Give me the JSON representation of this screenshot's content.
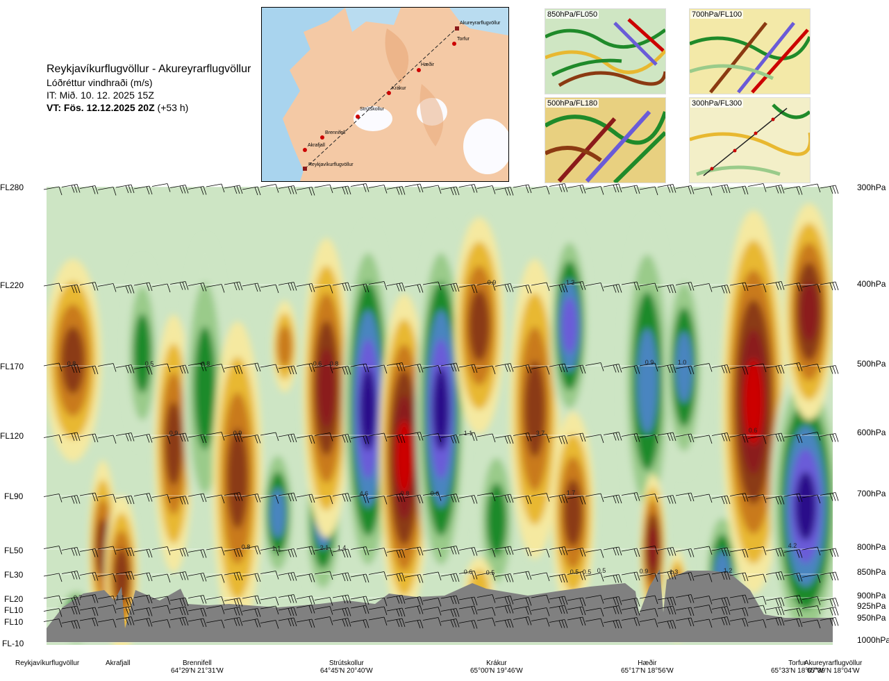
{
  "header": {
    "route": "Reykjavíkurflugvöllur - Akureyrarflugvöllur",
    "subtitle": "Lóðréttur vindhraði (m/s)",
    "issued": "IT: Mið. 10. 12. 2025 15Z",
    "valid": "VT: Fös. 12.12.2025 20Z",
    "lead": "(+53 h)"
  },
  "map": {
    "points": [
      "Akureyrarflugvöllur",
      "Torfur",
      "Hæðir",
      "Krákur",
      "Strútskollur",
      "Brennifell",
      "Akrafjall",
      "Reykjavíkurflugvöllur"
    ]
  },
  "thumbnails": [
    {
      "label": "850hPa/FL050"
    },
    {
      "label": "700hPa/FL100"
    },
    {
      "label": "500hPa/FL180"
    },
    {
      "label": "300hPa/FL300"
    }
  ],
  "chart_data": {
    "type": "heatmap",
    "title": "Reykjavíkurflugvöllur - Akureyrarflugvöllur",
    "left_axis": [
      "FL280",
      "FL220",
      "FL170",
      "FL120",
      "FL90",
      "FL50",
      "FL30",
      "FL20",
      "FL10",
      "FL10",
      "FL-10"
    ],
    "right_axis": [
      "300hPa",
      "400hPa",
      "500hPa",
      "600hPa",
      "700hPa",
      "800hPa",
      "850hPa",
      "900hPa",
      "925hPa",
      "950hPa",
      "1000hPa"
    ],
    "pressure_levels": [
      300,
      400,
      500,
      600,
      700,
      800,
      850,
      900,
      925,
      950,
      1000
    ],
    "stations": [
      {
        "name": "Reykjavíkurflugvöllur",
        "coord": ""
      },
      {
        "name": "Akrafjall",
        "coord": ""
      },
      {
        "name": "Brennifell",
        "coord": "64°29'N 21°31'W"
      },
      {
        "name": "Strútskollur",
        "coord": "64°45'N 20°40'W"
      },
      {
        "name": "Krákur",
        "coord": "65°00'N 19°46'W"
      },
      {
        "name": "Hæðir",
        "coord": "65°17'N 18°56'W"
      },
      {
        "name": "Torfur",
        "coord": "65°33'N 18°07'W"
      },
      {
        "name": "Akureyrarflugvöllur",
        "coord": "65°39'N 18°04'W"
      }
    ],
    "colors": {
      "down_strong": "#cc0000",
      "down_mid": "#8b1a1a",
      "down": "#8b3a12",
      "down_light": "#c97a1a",
      "down_weak": "#e8b830",
      "neutral_down": "#f5e9a0",
      "neutral_up": "#cde5c4",
      "up_weak": "#9acb8a",
      "up": "#1f8a2a",
      "up_mid": "#4a85c0",
      "up_strong": "#6a5bd8",
      "up_max": "#2a0a8a",
      "terrain": "#808080"
    },
    "contour_labels": [
      "0.8",
      "0.5",
      "0.8",
      "0.6",
      "0.8",
      "0.9",
      "1.2",
      "0.9",
      "1.0",
      "0.9",
      "0.9",
      "0.6",
      "1.1",
      "3.7",
      "0.8",
      "0.6",
      "4.6",
      "1.7",
      "0.8",
      "1.1",
      "2.1",
      "1.4",
      "0.5",
      "0.5",
      "0.5",
      "0.9",
      "1.3",
      "1.2",
      "4.2",
      "0.7",
      "1.1",
      "0.6",
      "0.5"
    ]
  }
}
